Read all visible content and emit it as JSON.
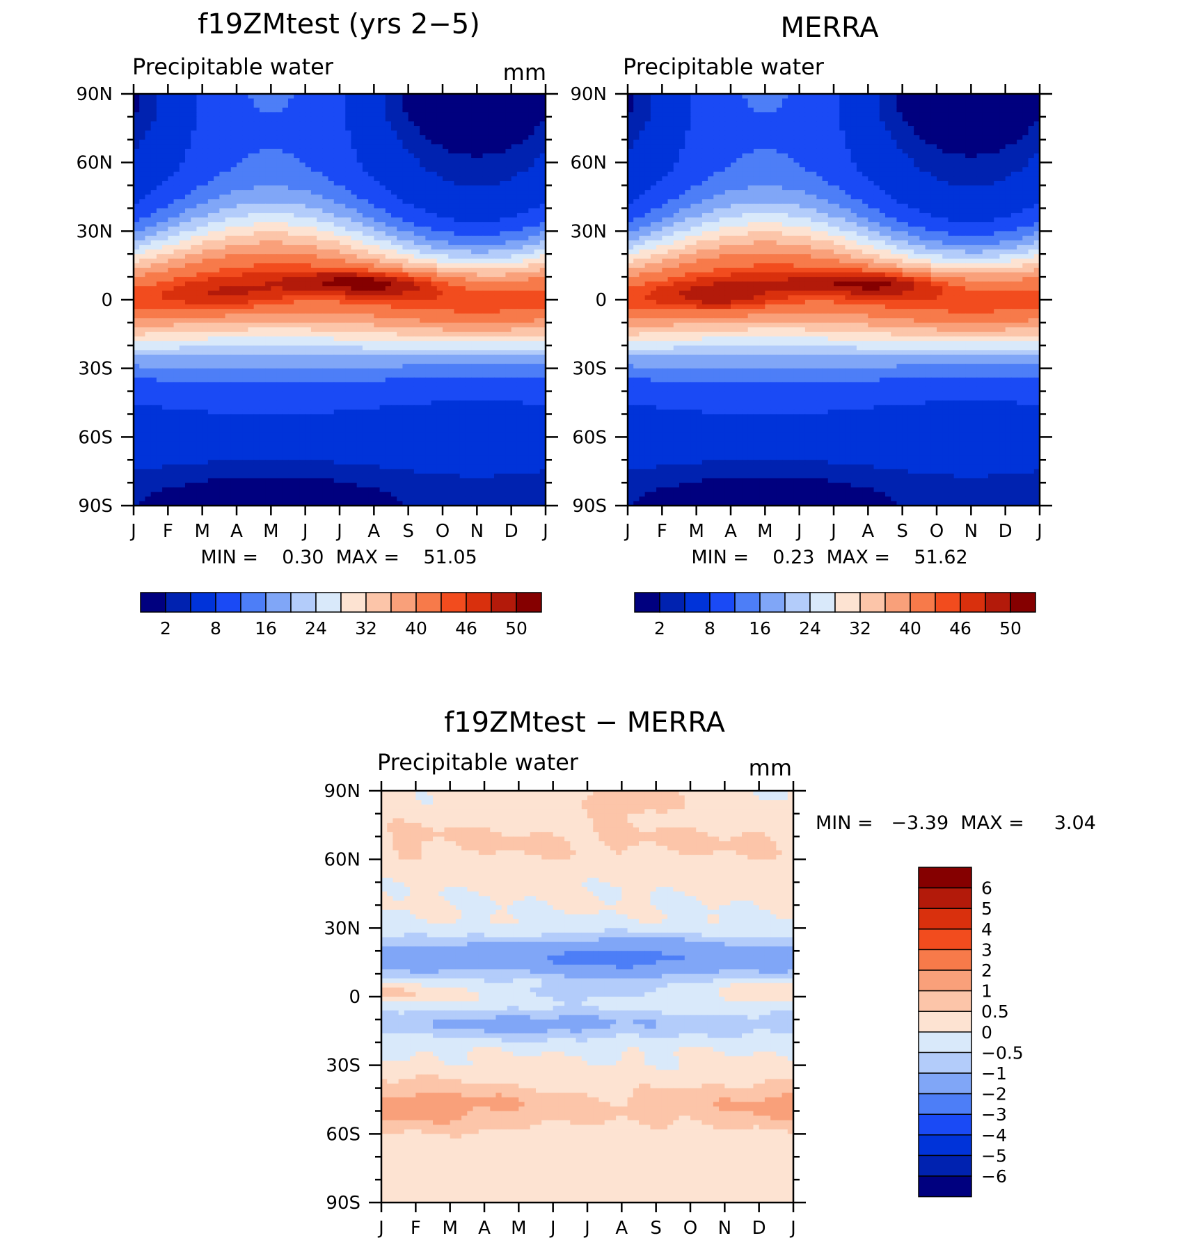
{
  "chart_data": [
    {
      "type": "heatmap",
      "title": "f19ZMtest (yrs 2−5)",
      "subtitle": "Precipitable water",
      "units": "mm",
      "x_tick_labels": [
        "J",
        "F",
        "M",
        "A",
        "M",
        "J",
        "J",
        "A",
        "S",
        "O",
        "N",
        "D",
        "J"
      ],
      "y_tick_labels": [
        "90N",
        "60N",
        "30N",
        "0",
        "30S",
        "60S",
        "90S"
      ],
      "min_max_text": "MIN =    0.30  MAX =    51.05",
      "min": 0.3,
      "max": 51.05,
      "contour_levels": [
        2,
        4,
        8,
        12,
        16,
        20,
        24,
        28,
        32,
        36,
        40,
        44,
        46,
        48,
        50
      ],
      "colorbar_tick_labels": [
        "2",
        "8",
        "16",
        "24",
        "32",
        "40",
        "46",
        "50"
      ],
      "colormap": [
        "#00007f",
        "#0022b0",
        "#0033d9",
        "#1a4af5",
        "#4d7ef7",
        "#80a6f7",
        "#b3ccfa",
        "#d9e9fa",
        "#fde3d2",
        "#fcc5a9",
        "#f9a07a",
        "#f77a4a",
        "#f24c1e",
        "#d9300d",
        "#b31a0a",
        "#850000"
      ],
      "peak_position": {
        "month": 7.2,
        "lat": 8
      },
      "grid": false
    },
    {
      "type": "heatmap",
      "title": "MERRA",
      "subtitle": "Precipitable water",
      "units": "",
      "x_tick_labels": [
        "J",
        "F",
        "M",
        "A",
        "M",
        "J",
        "J",
        "A",
        "S",
        "O",
        "N",
        "D",
        "J"
      ],
      "y_tick_labels": [
        "90N",
        "60N",
        "30N",
        "0",
        "30S",
        "60S",
        "90S"
      ],
      "min_max_text": "MIN =    0.23  MAX =    51.62",
      "min": 0.23,
      "max": 51.62,
      "contour_levels": [
        2,
        4,
        8,
        12,
        16,
        20,
        24,
        28,
        32,
        36,
        40,
        44,
        46,
        48,
        50
      ],
      "colorbar_tick_labels": [
        "2",
        "8",
        "16",
        "24",
        "32",
        "40",
        "46",
        "50"
      ],
      "colormap": [
        "#00007f",
        "#0022b0",
        "#0033d9",
        "#1a4af5",
        "#4d7ef7",
        "#80a6f7",
        "#b3ccfa",
        "#d9e9fa",
        "#fde3d2",
        "#fcc5a9",
        "#f9a07a",
        "#f77a4a",
        "#f24c1e",
        "#d9300d",
        "#b31a0a",
        "#850000"
      ],
      "peak_position": {
        "month": 7.5,
        "lat": 8
      },
      "grid": false
    },
    {
      "type": "heatmap",
      "title": "f19ZMtest − MERRA",
      "subtitle": "Precipitable water",
      "units": "mm",
      "x_tick_labels": [
        "J",
        "F",
        "M",
        "A",
        "M",
        "J",
        "J",
        "A",
        "S",
        "O",
        "N",
        "D",
        "J"
      ],
      "y_tick_labels": [
        "90N",
        "60N",
        "30N",
        "0",
        "30S",
        "60S",
        "90S"
      ],
      "min_max_text": "MIN =   −3.39  MAX =     3.04",
      "min": -3.39,
      "max": 3.04,
      "contour_levels": [
        -6,
        -5,
        -4,
        -3,
        -2,
        -1,
        -0.5,
        0,
        0.5,
        1,
        2,
        3,
        4,
        5,
        6
      ],
      "colorbar_tick_labels": [
        "6",
        "5",
        "4",
        "3",
        "2",
        "1",
        "0.5",
        "0",
        "−0.5",
        "−1",
        "−2",
        "−3",
        "−4",
        "−5",
        "−6"
      ],
      "colormap": [
        "#00007f",
        "#0022b0",
        "#0033d9",
        "#1a4af5",
        "#4d7ef7",
        "#80a6f7",
        "#b3ccfa",
        "#d9e9fa",
        "#fde3d2",
        "#fcc5a9",
        "#f9a07a",
        "#f77a4a",
        "#f24c1e",
        "#d9300d",
        "#b31a0a",
        "#850000"
      ],
      "grid": false
    }
  ]
}
